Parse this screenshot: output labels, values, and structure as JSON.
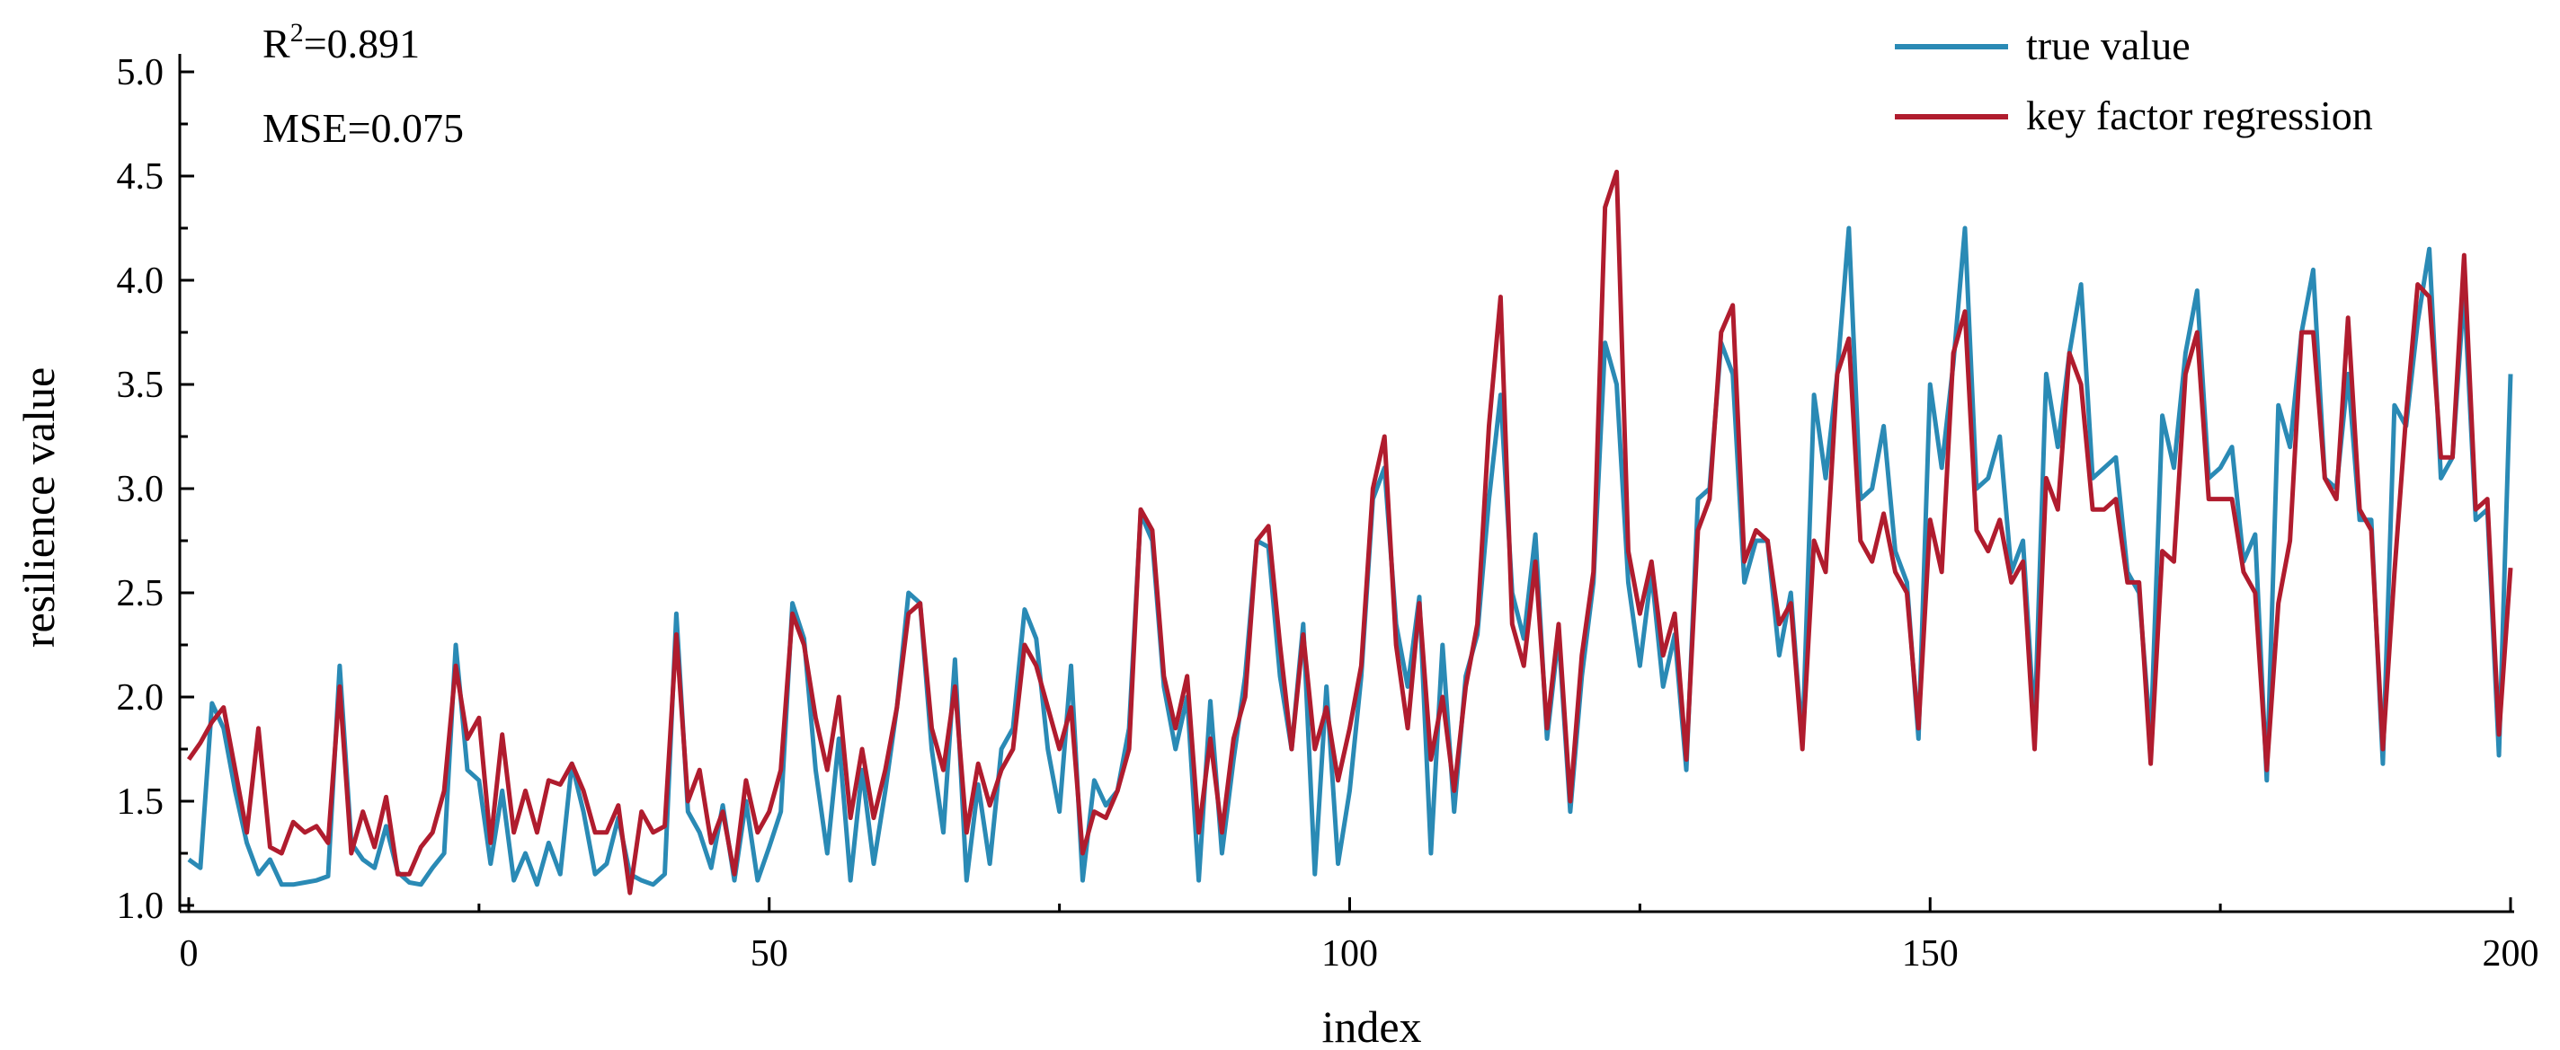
{
  "stats": {
    "r2_base": "R",
    "r2_sup": "2",
    "r2_value": "=0.891",
    "mse": "MSE=0.075"
  },
  "chart_data": {
    "type": "line",
    "title": "",
    "xlabel": "index",
    "ylabel": "resilience value",
    "xlim": [
      0,
      200
    ],
    "ylim": [
      1.0,
      5.0
    ],
    "x_ticks": [
      0,
      50,
      100,
      150,
      200
    ],
    "x_tick_labels": [
      "0",
      "50",
      "100",
      "150",
      "200"
    ],
    "y_ticks": [
      1.0,
      1.5,
      2.0,
      2.5,
      3.0,
      3.5,
      4.0,
      4.5,
      5.0
    ],
    "y_tick_labels": [
      "1.0",
      "1.5",
      "2.0",
      "2.5",
      "3.0",
      "3.5",
      "4.0",
      "4.5",
      "5.0"
    ],
    "grid": false,
    "legend_position": "top-right",
    "series": [
      {
        "name": "true value",
        "color": "#2a8ab5",
        "values": [
          1.22,
          1.18,
          1.97,
          1.85,
          1.55,
          1.3,
          1.15,
          1.22,
          1.1,
          1.1,
          1.11,
          1.12,
          1.14,
          2.15,
          1.3,
          1.22,
          1.18,
          1.38,
          1.16,
          1.11,
          1.1,
          1.18,
          1.25,
          2.25,
          1.65,
          1.6,
          1.2,
          1.55,
          1.12,
          1.25,
          1.1,
          1.3,
          1.15,
          1.68,
          1.45,
          1.15,
          1.2,
          1.42,
          1.15,
          1.12,
          1.1,
          1.15,
          2.4,
          1.45,
          1.35,
          1.18,
          1.48,
          1.12,
          1.5,
          1.12,
          1.28,
          1.45,
          2.45,
          2.28,
          1.65,
          1.25,
          1.8,
          1.12,
          1.65,
          1.2,
          1.55,
          1.95,
          2.5,
          2.45,
          1.75,
          1.35,
          2.18,
          1.12,
          1.58,
          1.2,
          1.75,
          1.85,
          2.42,
          2.28,
          1.75,
          1.45,
          2.15,
          1.12,
          1.6,
          1.48,
          1.55,
          1.85,
          2.88,
          2.75,
          2.05,
          1.75,
          2.0,
          1.12,
          1.98,
          1.25,
          1.7,
          2.1,
          2.75,
          2.72,
          2.1,
          1.75,
          2.35,
          1.15,
          2.05,
          1.2,
          1.55,
          2.1,
          2.95,
          3.1,
          2.35,
          2.05,
          2.48,
          1.25,
          2.25,
          1.45,
          2.1,
          2.3,
          2.95,
          3.45,
          2.5,
          2.28,
          2.78,
          1.8,
          2.3,
          1.45,
          2.1,
          2.55,
          3.7,
          3.5,
          2.55,
          2.15,
          2.6,
          2.05,
          2.3,
          1.65,
          2.95,
          3.0,
          3.7,
          3.55,
          2.55,
          2.75,
          2.75,
          2.2,
          2.5,
          1.78,
          3.45,
          3.05,
          3.55,
          4.25,
          2.95,
          3.0,
          3.3,
          2.7,
          2.55,
          1.8,
          3.5,
          3.1,
          3.6,
          4.25,
          3.0,
          3.05,
          3.25,
          2.6,
          2.75,
          1.85,
          3.55,
          3.2,
          3.65,
          3.98,
          3.05,
          3.1,
          3.15,
          2.6,
          2.5,
          1.8,
          3.35,
          3.1,
          3.65,
          3.95,
          3.05,
          3.1,
          3.2,
          2.65,
          2.78,
          1.6,
          3.4,
          3.2,
          3.75,
          4.05,
          3.05,
          3.0,
          3.55,
          2.85,
          2.85,
          1.68,
          3.4,
          3.3,
          3.8,
          4.15,
          3.05,
          3.15,
          3.95,
          2.85,
          2.9,
          1.72,
          3.55
        ]
      },
      {
        "name": "key factor regression",
        "color": "#b01c2e",
        "values": [
          1.7,
          1.78,
          1.88,
          1.95,
          1.65,
          1.35,
          1.85,
          1.28,
          1.25,
          1.4,
          1.35,
          1.38,
          1.3,
          2.05,
          1.25,
          1.45,
          1.28,
          1.52,
          1.15,
          1.15,
          1.28,
          1.35,
          1.55,
          2.15,
          1.8,
          1.9,
          1.3,
          1.82,
          1.35,
          1.55,
          1.35,
          1.6,
          1.58,
          1.68,
          1.55,
          1.35,
          1.35,
          1.48,
          1.06,
          1.45,
          1.35,
          1.38,
          2.3,
          1.5,
          1.65,
          1.3,
          1.45,
          1.15,
          1.6,
          1.35,
          1.45,
          1.65,
          2.4,
          2.25,
          1.9,
          1.65,
          2.0,
          1.42,
          1.75,
          1.42,
          1.65,
          1.95,
          2.4,
          2.45,
          1.85,
          1.65,
          2.05,
          1.35,
          1.68,
          1.48,
          1.65,
          1.75,
          2.25,
          2.15,
          1.95,
          1.75,
          1.95,
          1.25,
          1.45,
          1.42,
          1.55,
          1.75,
          2.9,
          2.8,
          2.1,
          1.85,
          2.1,
          1.35,
          1.8,
          1.35,
          1.8,
          2.0,
          2.75,
          2.82,
          2.25,
          1.75,
          2.3,
          1.75,
          1.95,
          1.6,
          1.85,
          2.15,
          3.0,
          3.25,
          2.25,
          1.85,
          2.45,
          1.7,
          2.0,
          1.55,
          2.05,
          2.35,
          3.3,
          3.92,
          2.35,
          2.15,
          2.65,
          1.85,
          2.35,
          1.5,
          2.2,
          2.6,
          4.35,
          4.52,
          2.7,
          2.4,
          2.65,
          2.2,
          2.4,
          1.7,
          2.8,
          2.95,
          3.75,
          3.88,
          2.65,
          2.8,
          2.75,
          2.35,
          2.45,
          1.75,
          2.75,
          2.6,
          3.55,
          3.72,
          2.75,
          2.65,
          2.88,
          2.6,
          2.5,
          1.85,
          2.85,
          2.6,
          3.65,
          3.85,
          2.8,
          2.7,
          2.85,
          2.55,
          2.65,
          1.75,
          3.05,
          2.9,
          3.65,
          3.5,
          2.9,
          2.9,
          2.95,
          2.55,
          2.55,
          1.68,
          2.7,
          2.65,
          3.55,
          3.75,
          2.95,
          2.95,
          2.95,
          2.6,
          2.5,
          1.65,
          2.45,
          2.75,
          3.75,
          3.75,
          3.05,
          2.95,
          3.82,
          2.9,
          2.8,
          1.75,
          2.6,
          3.35,
          3.98,
          3.92,
          3.15,
          3.15,
          4.12,
          2.9,
          2.95,
          1.82,
          2.62
        ]
      }
    ]
  }
}
